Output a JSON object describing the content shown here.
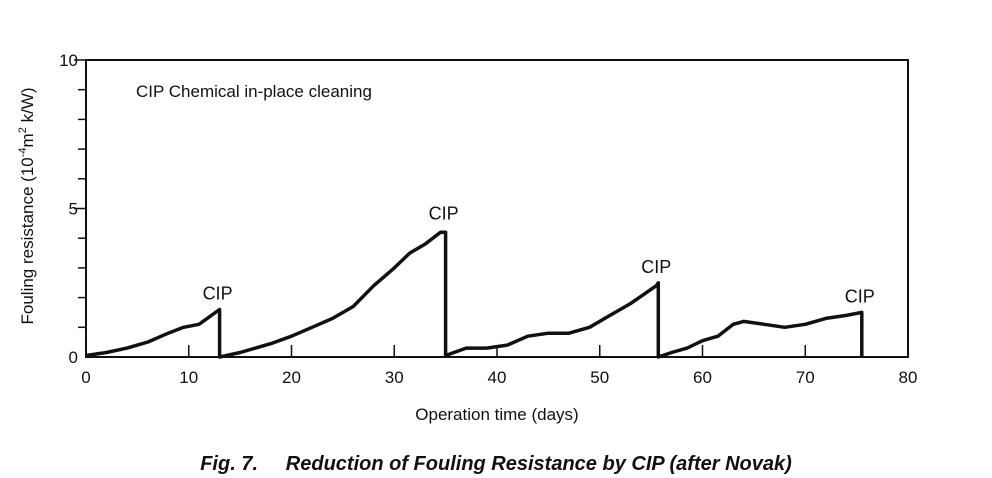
{
  "chart_data": {
    "type": "line",
    "xlabel": "Operation time (days)",
    "ylabel_html_parts": [
      "Fouling resistance (10",
      "-4",
      "m",
      "2",
      " k/W)"
    ],
    "xlim": [
      0,
      80
    ],
    "ylim": [
      0,
      10
    ],
    "x_ticks": [
      0,
      10,
      20,
      30,
      40,
      50,
      60,
      70,
      80
    ],
    "y_tick_labels": [
      0,
      5,
      10
    ],
    "y_labeled_ticks": [
      5,
      10
    ],
    "y_minor_ticks": [
      1,
      2,
      3,
      4,
      6,
      7,
      8,
      9
    ],
    "grid": false,
    "legend_text": "CIP Chemical in-place cleaning",
    "annotations": [
      {
        "text": "CIP",
        "x": 13,
        "y": 1.6
      },
      {
        "text": "CIP",
        "x": 35,
        "y": 4.3
      },
      {
        "text": "CIP",
        "x": 55.7,
        "y": 2.5
      },
      {
        "text": "CIP",
        "x": 75.5,
        "y": 1.5
      }
    ],
    "series": [
      {
        "x": [
          0,
          2,
          4,
          6,
          8,
          9.5,
          11,
          13,
          13,
          15,
          18,
          20,
          22,
          24,
          26,
          28,
          30,
          31.5,
          33,
          34.5,
          35,
          35,
          37,
          39,
          41,
          43,
          45,
          47,
          49,
          51,
          53,
          55.5,
          55.7,
          55.7,
          57,
          58.5,
          60,
          61.5,
          63,
          64,
          66,
          68,
          70,
          72,
          74,
          75.5,
          75.5
        ],
        "y": [
          0.05,
          0.15,
          0.3,
          0.5,
          0.8,
          1.0,
          1.1,
          1.6,
          0.0,
          0.15,
          0.45,
          0.7,
          1.0,
          1.3,
          1.7,
          2.4,
          3.0,
          3.5,
          3.8,
          4.2,
          4.2,
          0.05,
          0.3,
          0.3,
          0.4,
          0.7,
          0.8,
          0.8,
          1.0,
          1.4,
          1.8,
          2.4,
          2.5,
          0.0,
          0.15,
          0.3,
          0.55,
          0.7,
          1.1,
          1.2,
          1.1,
          1.0,
          1.1,
          1.3,
          1.4,
          1.5,
          0.0
        ]
      }
    ]
  },
  "caption": "Fig. 7.     Reduction of Fouling Resistance by CIP (after Novak)"
}
